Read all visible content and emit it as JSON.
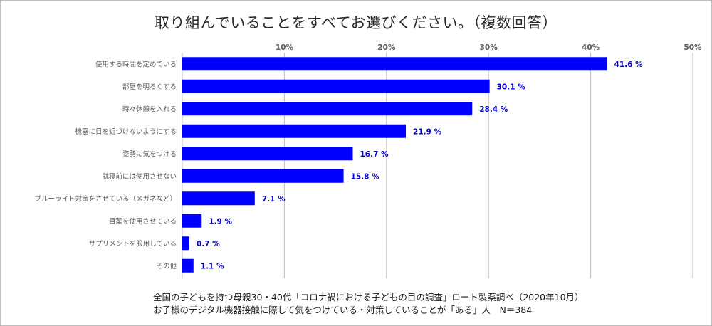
{
  "chart_data": {
    "type": "bar",
    "orientation": "horizontal",
    "title": "取り組んでいることをすべてお選びください。（複数回答）",
    "categories": [
      "使用する時間を定めている",
      "部屋を明るくする",
      "時々休憩を入れる",
      "機器に目を近づけないようにする",
      "姿勢に気をつける",
      "就寝前には使用させない",
      "ブルーライト対策をさせている（メガネなど）",
      "目薬を使用させている",
      "サプリメントを服用している",
      "その他"
    ],
    "values": [
      41.6,
      30.1,
      28.4,
      21.9,
      16.7,
      15.8,
      7.1,
      1.9,
      0.7,
      1.1
    ],
    "value_labels": [
      "41.6 %",
      "30.1 %",
      "28.4 %",
      "21.9 %",
      "16.7 %",
      "15.8 %",
      "7.1 %",
      "1.9 %",
      "0.7 %",
      "1.1 %"
    ],
    "xlim": [
      0,
      50
    ],
    "ticks": [
      10,
      20,
      30,
      40,
      50
    ],
    "tick_labels": [
      "10%",
      "20%",
      "30%",
      "40%",
      "50%"
    ],
    "grid": true,
    "bar_color": "#0000ff",
    "value_label_color": "#0000cc",
    "xlabel": "",
    "ylabel": ""
  },
  "footnote": {
    "line1": "全国の子どもを持つ母親30・40代「コロナ禍における子どもの目の調査」ロート製薬調べ（2020年10月）",
    "line2": "お子様のデジタル機器接触に際して気をつけている・対策していることが「ある」人　N＝384"
  }
}
